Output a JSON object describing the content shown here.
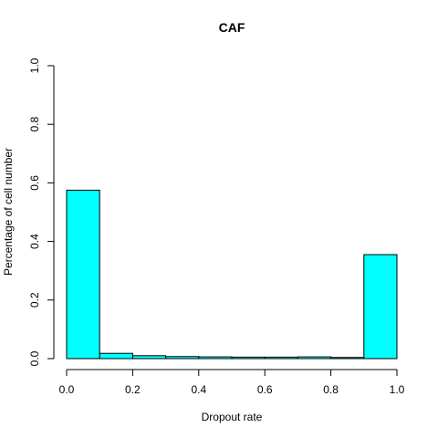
{
  "chart_data": {
    "type": "bar",
    "title": "CAF",
    "xlabel": "Dropout rate",
    "ylabel": "Percentage of cell number",
    "bins": [
      {
        "from": 0.0,
        "to": 0.1,
        "value": 0.575
      },
      {
        "from": 0.1,
        "to": 0.2,
        "value": 0.018
      },
      {
        "from": 0.2,
        "to": 0.3,
        "value": 0.01
      },
      {
        "from": 0.3,
        "to": 0.4,
        "value": 0.007
      },
      {
        "from": 0.4,
        "to": 0.5,
        "value": 0.006
      },
      {
        "from": 0.5,
        "to": 0.6,
        "value": 0.005
      },
      {
        "from": 0.6,
        "to": 0.7,
        "value": 0.005
      },
      {
        "from": 0.7,
        "to": 0.8,
        "value": 0.006
      },
      {
        "from": 0.8,
        "to": 0.9,
        "value": 0.004
      },
      {
        "from": 0.9,
        "to": 1.0,
        "value": 0.355
      }
    ],
    "xlim": [
      0,
      1
    ],
    "ylim": [
      0,
      1
    ],
    "xticks": [
      "0.0",
      "0.2",
      "0.4",
      "0.6",
      "0.8",
      "1.0"
    ],
    "yticks": [
      "0.0",
      "0.2",
      "0.4",
      "0.6",
      "0.8",
      "1.0"
    ],
    "bar_color": "#00ffff",
    "grid": false
  }
}
